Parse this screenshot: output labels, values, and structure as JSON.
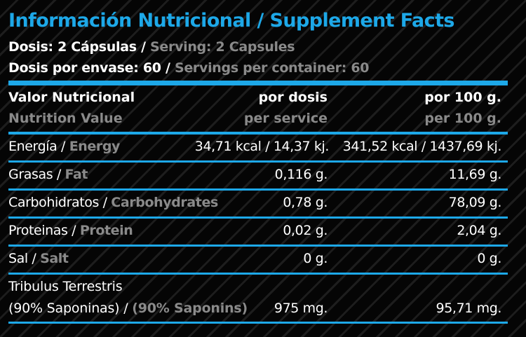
{
  "colors": {
    "accent": "#1da8e8",
    "secondary_text": "#8a8a8a",
    "text": "#ffffff",
    "background": "#050505"
  },
  "title": "Información Nutricional / Supplement Facts",
  "dosis": {
    "es": "Dosis: 2 Cápsulas / ",
    "en": "Serving: 2 Capsules"
  },
  "envase": {
    "es": "Dosis por envase: 60 / ",
    "en": "Servings per container: 60"
  },
  "header": {
    "col1_es": "Valor Nutricional",
    "col1_en": "Nutrition Value",
    "col2_es": "por dosis",
    "col2_en": "per service",
    "col3_es": "por 100 g.",
    "col3_en": "per 100 g."
  },
  "rows": [
    {
      "es": "Energía / ",
      "en": "Energy",
      "per_dose": "34,71 kcal / 14,37 kj.",
      "per_100g": "341,52 kcal / 1437,69 kj."
    },
    {
      "es": "Grasas / ",
      "en": "Fat",
      "per_dose": "0,116 g.",
      "per_100g": "11,69 g."
    },
    {
      "es": "Carbohidratos / ",
      "en": "Carbohydrates",
      "per_dose": "0,78 g.",
      "per_100g": "78,09 g."
    },
    {
      "es": "Proteinas / ",
      "en": "Protein",
      "per_dose": "0,02 g.",
      "per_100g": "2,04 g."
    },
    {
      "es": "Sal / ",
      "en": "Salt",
      "per_dose": "0 g.",
      "per_100g": "0 g."
    }
  ],
  "tribulus": {
    "line1": "Tribulus Terrestris",
    "es": "(90% Saponinas) / ",
    "en": "(90% Saponins)",
    "per_dose": "975 mg.",
    "per_100g": "95,71  mg."
  }
}
